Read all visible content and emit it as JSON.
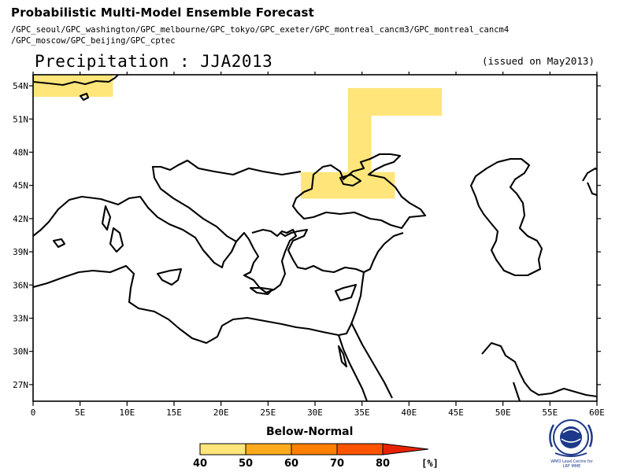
{
  "header": {
    "title": "Probabilistic Multi-Model Ensemble Forecast",
    "models_line1": "/GPC_seoul/GPC_washington/GPC_melbourne/GPC_tokyo/GPC_exeter/GPC_montreal_cancm3/GPC_montreal_cancm4",
    "models_line2": "/GPC_moscow/GPC_beijing/GPC_cptec",
    "subtitle": "Precipitation : JJA2013",
    "issued": "(issued on May2013)"
  },
  "map": {
    "lon_range": [
      0,
      60
    ],
    "lat_range": [
      25.5,
      55
    ],
    "lon_ticks": [
      "0",
      "5E",
      "10E",
      "15E",
      "20E",
      "25E",
      "30E",
      "35E",
      "40E",
      "45E",
      "50E",
      "55E",
      "60E"
    ],
    "lat_ticks": [
      "27N",
      "30N",
      "33N",
      "36N",
      "39N",
      "42N",
      "45N",
      "48N",
      "51N",
      "54N"
    ],
    "lon_tick_values": [
      0,
      5,
      10,
      15,
      20,
      25,
      30,
      35,
      40,
      45,
      50,
      55,
      60
    ],
    "lat_tick_values": [
      27,
      30,
      33,
      36,
      39,
      42,
      45,
      48,
      51,
      54
    ],
    "forecast_cells": [
      {
        "lon": [
          0,
          8.5
        ],
        "lat": [
          53.0,
          55
        ],
        "category": "40-50",
        "color": "#ffe57a"
      },
      {
        "lon": [
          33.5,
          43.5
        ],
        "lat": [
          51.3,
          53.8
        ],
        "category": "40-50",
        "color": "#ffe57a"
      },
      {
        "lon": [
          33.5,
          36.0
        ],
        "lat": [
          46.2,
          51.3
        ],
        "category": "40-50",
        "color": "#ffe57a"
      },
      {
        "lon": [
          28.5,
          38.5
        ],
        "lat": [
          43.8,
          46.2
        ],
        "category": "40-50",
        "color": "#ffe57a"
      }
    ]
  },
  "legend": {
    "title": "Below-Normal",
    "unit": "[%]",
    "ticks": [
      "40",
      "50",
      "60",
      "70",
      "80"
    ],
    "colors": [
      "#ffe57a",
      "#ffaa1a",
      "#ff7f00",
      "#ff5500",
      "#e82200",
      "#e82200"
    ]
  },
  "logo": {
    "caption_line1": "WMO Lead Centre for",
    "caption_line2": "LRF MME"
  }
}
